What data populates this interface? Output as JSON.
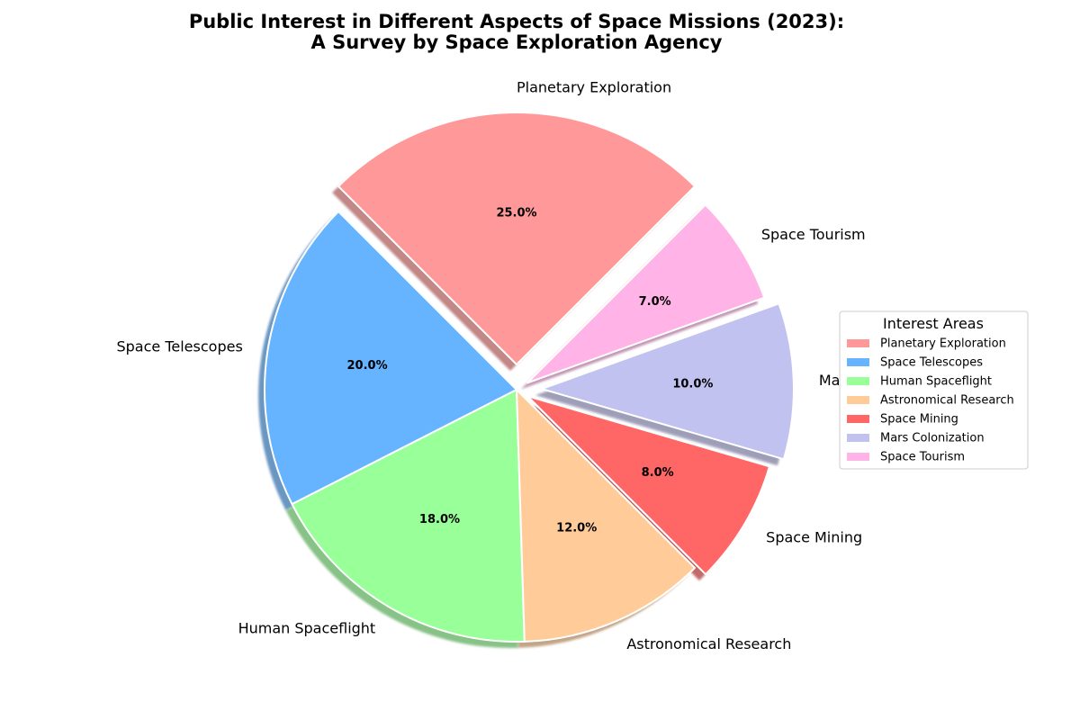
{
  "chart_data": {
    "type": "pie",
    "title_lines": [
      "Public Interest in Different Aspects of Space Missions (2023):",
      "A Survey by Space Exploration Agency"
    ],
    "legend_title": "Interest Areas",
    "legend_position": "right",
    "start_angle_deg": 45,
    "direction": "counterclockwise",
    "shadow": true,
    "slices": [
      {
        "label": "Planetary Exploration",
        "value": 25.0,
        "pct_label": "25.0%",
        "color": "#FF9999",
        "explode": 0.1
      },
      {
        "label": "Space Telescopes",
        "value": 20.0,
        "pct_label": "20.0%",
        "color": "#66B3FF",
        "explode": 0
      },
      {
        "label": "Human Spaceflight",
        "value": 18.0,
        "pct_label": "18.0%",
        "color": "#99FF99",
        "explode": 0
      },
      {
        "label": "Astronomical Research",
        "value": 12.0,
        "pct_label": "12.0%",
        "color": "#FFCC99",
        "explode": 0
      },
      {
        "label": "Space Mining",
        "value": 8.0,
        "pct_label": "8.0%",
        "color": "#FF6666",
        "explode": 0.05
      },
      {
        "label": "Mars Colonization",
        "value": 10.0,
        "pct_label": "10.0%",
        "color": "#C2C2F0",
        "explode": 0.1
      },
      {
        "label": "Space Tourism",
        "value": 7.0,
        "pct_label": "7.0%",
        "color": "#FFB3E6",
        "explode": 0.05
      }
    ]
  }
}
